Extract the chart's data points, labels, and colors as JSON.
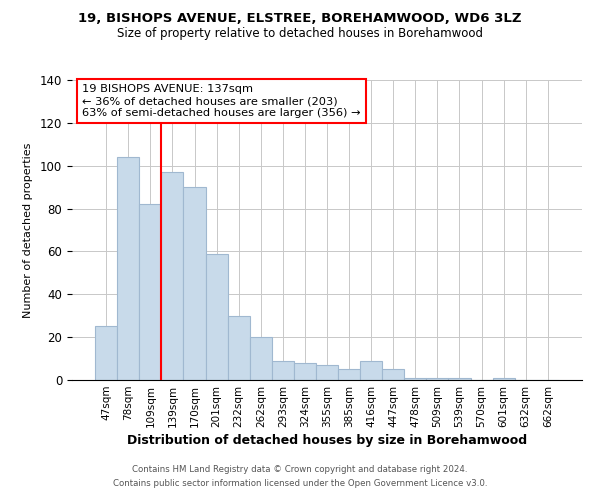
{
  "title1": "19, BISHOPS AVENUE, ELSTREE, BOREHAMWOOD, WD6 3LZ",
  "title2": "Size of property relative to detached houses in Borehamwood",
  "xlabel": "Distribution of detached houses by size in Borehamwood",
  "ylabel": "Number of detached properties",
  "bar_labels": [
    "47sqm",
    "78sqm",
    "109sqm",
    "139sqm",
    "170sqm",
    "201sqm",
    "232sqm",
    "262sqm",
    "293sqm",
    "324sqm",
    "355sqm",
    "385sqm",
    "416sqm",
    "447sqm",
    "478sqm",
    "509sqm",
    "539sqm",
    "570sqm",
    "601sqm",
    "632sqm",
    "662sqm"
  ],
  "bar_values": [
    25,
    104,
    82,
    97,
    90,
    59,
    30,
    20,
    9,
    8,
    7,
    5,
    9,
    5,
    1,
    1,
    1,
    0,
    1,
    0,
    0
  ],
  "bar_color": "#c8daea",
  "bar_edge_color": "#a0b8d0",
  "vline_color": "red",
  "ylim": [
    0,
    140
  ],
  "yticks": [
    0,
    20,
    40,
    60,
    80,
    100,
    120,
    140
  ],
  "annotation_title": "19 BISHOPS AVENUE: 137sqm",
  "annotation_line1": "← 36% of detached houses are smaller (203)",
  "annotation_line2": "63% of semi-detached houses are larger (356) →",
  "annotation_box_color": "#ffffff",
  "annotation_box_edgecolor": "red",
  "footer1": "Contains HM Land Registry data © Crown copyright and database right 2024.",
  "footer2": "Contains public sector information licensed under the Open Government Licence v3.0."
}
